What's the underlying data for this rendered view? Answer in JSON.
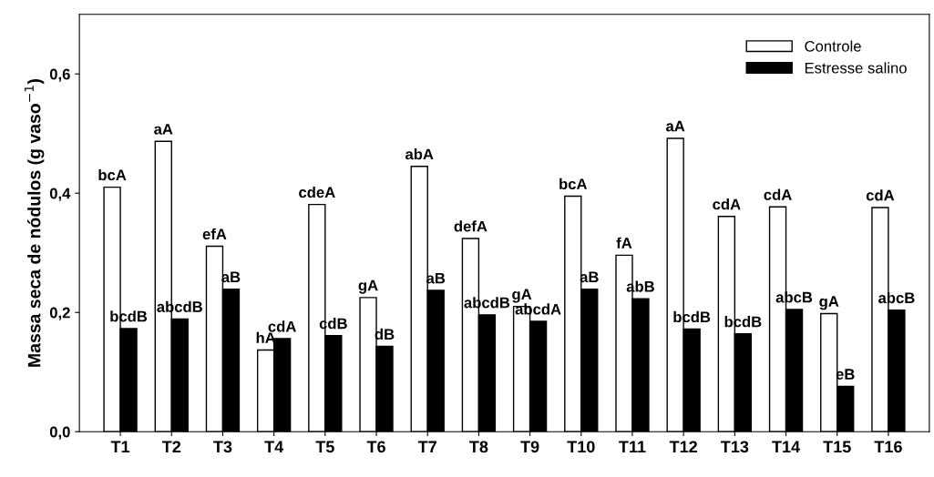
{
  "chart_data": {
    "type": "bar",
    "ylabel": "Massa seca de nódulos (g vaso$^{−1}$)",
    "categories": [
      "T1",
      "T2",
      "T3",
      "T4",
      "T5",
      "T6",
      "T7",
      "T8",
      "T9",
      "T10",
      "T11",
      "T12",
      "T13",
      "T14",
      "T15",
      "T16"
    ],
    "series": [
      {
        "name": "Controle",
        "color": "#ffffff",
        "values": [
          0.41,
          0.487,
          0.311,
          0.137,
          0.381,
          0.225,
          0.445,
          0.324,
          0.21,
          0.395,
          0.296,
          0.492,
          0.361,
          0.377,
          0.198,
          0.376
        ],
        "value_labels": [
          "bcA",
          "aA",
          "efA",
          "hA",
          "cdeA",
          "gA",
          "abA",
          "defA",
          "gA",
          "bcA",
          "fA",
          "aA",
          "cdA",
          "cdA",
          "gA",
          "cdA"
        ]
      },
      {
        "name": "Estresse salino",
        "color": "#000000",
        "values": [
          0.173,
          0.189,
          0.239,
          0.156,
          0.161,
          0.143,
          0.237,
          0.196,
          0.185,
          0.239,
          0.223,
          0.172,
          0.164,
          0.205,
          0.076,
          0.204
        ],
        "value_labels": [
          "bcdB",
          "abcdB",
          "aB",
          "cdA",
          "cdB",
          "dB",
          "aB",
          "abcdB",
          "abcdA",
          "aB",
          "abB",
          "bcdB",
          "bcdB",
          "abcB",
          "eB",
          "abcB"
        ]
      }
    ],
    "ylim": [
      0,
      0.7
    ],
    "yticks": [
      {
        "value": 0,
        "label": "0,0"
      },
      {
        "value": 0.2,
        "label": "0,2"
      },
      {
        "value": 0.4,
        "label": "0,4"
      },
      {
        "value": 0.6,
        "label": "0,6"
      }
    ],
    "grid": false,
    "legend": "top right"
  }
}
